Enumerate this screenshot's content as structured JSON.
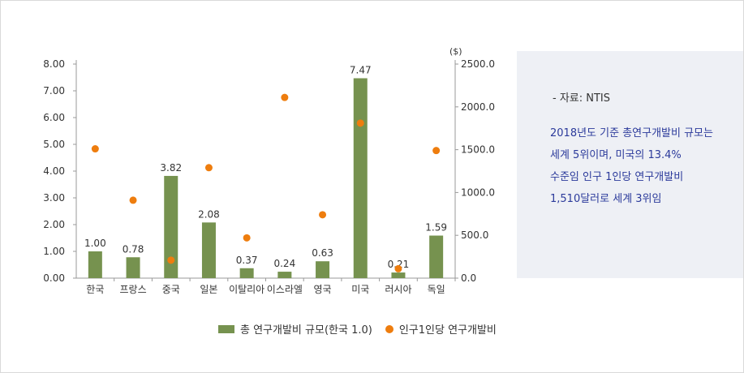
{
  "chart_data": {
    "type": "bar",
    "categories": [
      "한국",
      "프랑스",
      "중국",
      "일본",
      "이탈리아",
      "이스라엘",
      "영국",
      "미국",
      "러시아",
      "독일"
    ],
    "series": [
      {
        "name": "총 연구개발비 규모(한국 1.0)",
        "type": "bar",
        "axis": "left",
        "values": [
          1.0,
          0.78,
          3.82,
          2.08,
          0.37,
          0.24,
          0.63,
          7.47,
          0.21,
          1.59
        ],
        "labels": [
          "1.00",
          "0.78",
          "3.82",
          "2.08",
          "0.37",
          "0.24",
          "0.63",
          "7.47",
          "0.21",
          "1.59"
        ],
        "color": "#76924f"
      },
      {
        "name": "인구1인당 연구개발비",
        "type": "scatter",
        "axis": "right",
        "values": [
          1510,
          910,
          210,
          1290,
          470,
          2110,
          740,
          1810,
          110,
          1490
        ],
        "color": "#ee7d0e"
      }
    ],
    "y_left": {
      "ylim": [
        0,
        8
      ],
      "ticks": [
        "0.00",
        "1.00",
        "2.00",
        "3.00",
        "4.00",
        "5.00",
        "6.00",
        "7.00",
        "8.00"
      ]
    },
    "y_right": {
      "unit": "($)",
      "ylim": [
        0,
        2500
      ],
      "ticks": [
        "0.0",
        "500.0",
        "1000.0",
        "1500.0",
        "2000.0",
        "2500.0"
      ]
    },
    "legend_position": "bottom",
    "grid": false
  },
  "note": {
    "source": "- 자료: NTIS",
    "summary_lines": [
      "2018년도 기준 총연구개발비 규모는",
      "세계 5위이며, 미국의 13.4%",
      "수준임 인구 1인당 연구개발비",
      "1,510달러로 세계 3위임"
    ]
  }
}
